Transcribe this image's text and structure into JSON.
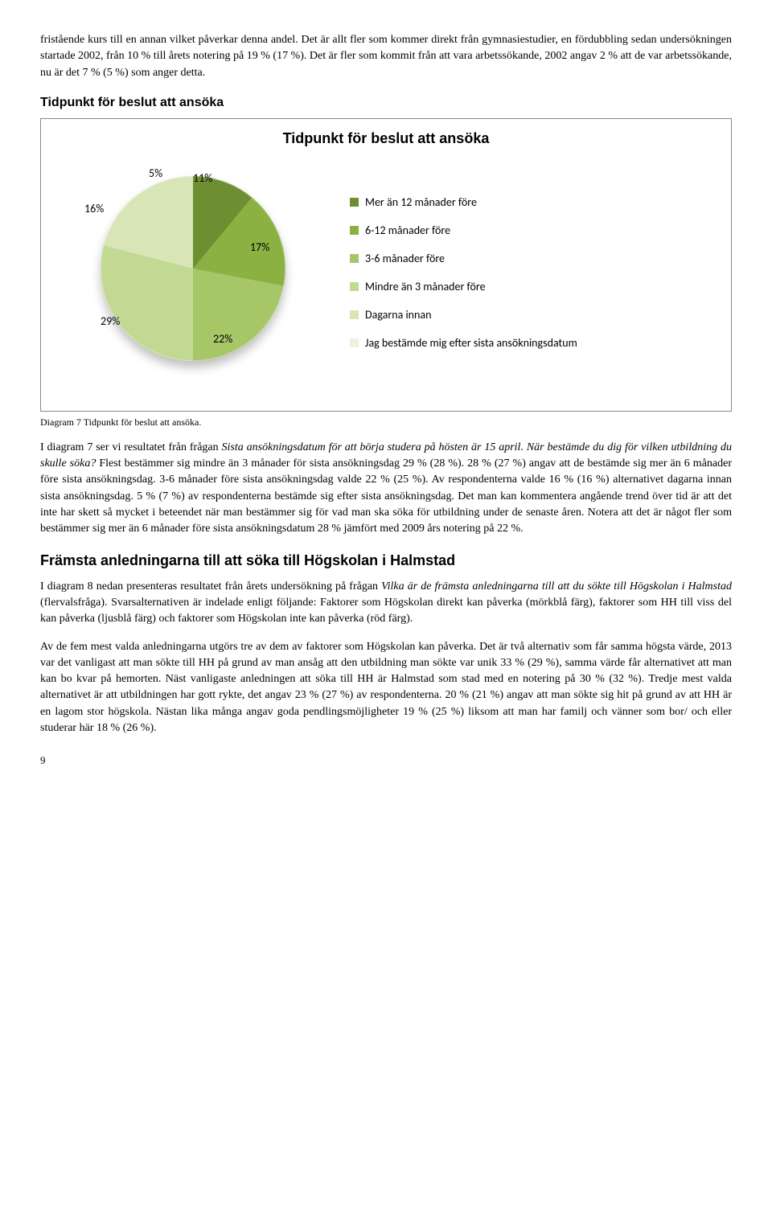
{
  "intro_paragraph": "fristående kurs till en annan vilket påverkar denna andel. Det är allt fler som kommer direkt från gymnasiestudier, en fördubbling sedan undersökningen startade 2002, från 10 % till årets notering på 19 % (17 %). Det är fler som kommit från att vara arbetssökande, 2002 angav 2 % att de var arbetssökande, nu är det 7 % (5 %) som anger detta.",
  "section_heading_1": "Tidpunkt för beslut att ansöka",
  "chart": {
    "title": "Tidpunkt för beslut att ansöka",
    "type": "pie",
    "slices": [
      {
        "label": "Mer än 12 månader före",
        "value": 11,
        "pct_label": "11%",
        "color": "#6d8f31"
      },
      {
        "label": "6-12 månader före",
        "value": 17,
        "pct_label": "17%",
        "color": "#8bb143"
      },
      {
        "label": "3-6 månader före",
        "value": 22,
        "pct_label": "22%",
        "color": "#a6c668"
      },
      {
        "label": "Mindre än 3 månader före",
        "value": 29,
        "pct_label": "29%",
        "color": "#c1d992"
      },
      {
        "label": "Dagarna innan",
        "value": 16,
        "pct_label": "16%",
        "color": "#d7e5b7"
      },
      {
        "label": "Jag bestämde mig efter sista ansökningsdatum",
        "value": 5,
        "pct_label": "5%",
        "color": "#ecf2dd"
      }
    ],
    "background_color": "#ffffff",
    "title_fontsize": 18,
    "label_fontsize": 14
  },
  "caption_7": "Diagram 7 Tidpunkt för beslut att ansöka.",
  "para_after_chart_prefix": "I diagram 7 ser vi resultatet från frågan ",
  "para_after_chart_italic1": "Sista ansökningsdatum för att börja studera på hösten är 15 april. När bestämde du dig för vilken utbildning du skulle söka?",
  "para_after_chart_rest": " Flest bestämmer sig mindre än 3 månader för sista ansökningsdag 29 % (28 %). 28 % (27 %) angav att de bestämde sig mer än 6 månader före sista ansökningsdag. 3-6 månader före sista ansökningsdag valde 22 % (25 %). Av respondenterna valde 16 % (16 %) alternativet dagarna innan sista ansökningsdag. 5 % (7 %) av respondenterna bestämde sig efter sista ansökningsdag. Det man kan kommentera angående trend över tid är att det inte har skett så mycket i beteendet när man bestämmer sig för vad man ska söka för utbildning under de senaste åren. Notera att det är något fler som bestämmer sig mer än 6 månader före sista ansökningsdatum 28 % jämfört med 2009 års notering på 22 %.",
  "section_heading_2": "Främsta anledningarna till att söka till Högskolan i Halmstad",
  "para8_prefix": "I diagram 8 nedan presenteras resultatet från årets undersökning på frågan ",
  "para8_italic": "Vilka är de främsta anledningarna till att du sökte till Högskolan i Halmstad ",
  "para8_rest": "(flervalsfråga). Svarsalternativen är indelade enligt följande: Faktorer som Högskolan direkt kan påverka (mörkblå färg), faktorer som HH till viss del kan påverka (ljusblå färg) och faktorer som Högskolan inte kan påverka (röd färg).",
  "para9": "Av de fem mest valda anledningarna utgörs tre av dem av faktorer som Högskolan kan påverka. Det är två alternativ som får samma högsta värde, 2013 var det vanligast att man sökte till HH på grund av man ansåg att den utbildning man sökte var unik 33 % (29 %), samma värde får alternativet att man kan bo kvar på hemorten. Näst vanligaste anledningen att söka till HH är Halmstad som stad med en notering på 30 % (32 %). Tredje mest valda alternativet är att utbildningen har gott rykte, det angav 23 % (27 %) av respondenterna. 20 % (21 %) angav att man sökte sig hit på grund av att HH är en lagom stor högskola. Nästan lika många angav goda pendlingsmöjligheter 19 % (25 %) liksom att man har familj och vänner som bor/ och eller studerar här 18 % (26 %).",
  "page_number": "9"
}
